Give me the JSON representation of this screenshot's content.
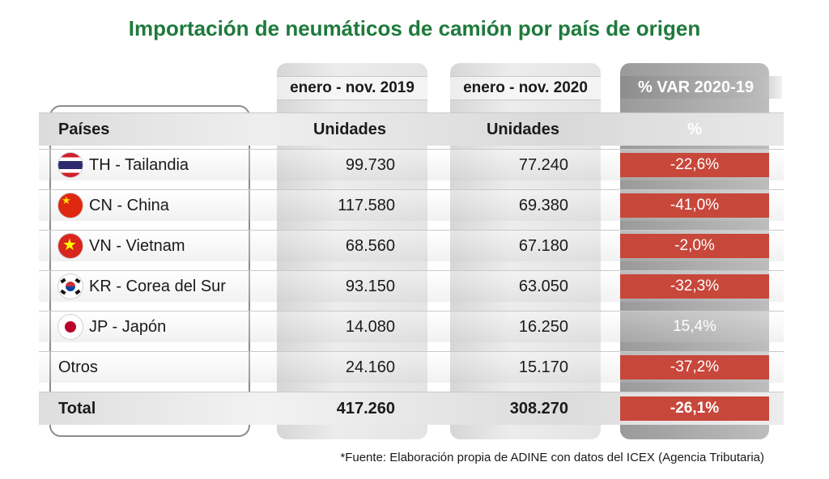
{
  "chart_data": {
    "type": "table",
    "title": "Importación de neumáticos de camión por país de origen",
    "column_periods": [
      "enero - nov. 2019",
      "enero - nov. 2020",
      "% VAR 2020-19"
    ],
    "header": {
      "country": "Países",
      "units_2019": "Unidades",
      "units_2020": "Unidades",
      "pct": "%"
    },
    "rows": [
      {
        "flag": "thailand-flag-icon",
        "country": "TH - Tailandia",
        "units_2019": "99.730",
        "units_2020": "77.240",
        "pct": "-22,6%",
        "negative": true
      },
      {
        "flag": "china-flag-icon",
        "country": "CN - China",
        "units_2019": "117.580",
        "units_2020": "69.380",
        "pct": "-41,0%",
        "negative": true
      },
      {
        "flag": "vietnam-flag-icon",
        "country": "VN - Vietnam",
        "units_2019": "68.560",
        "units_2020": "67.180",
        "pct": "-2,0%",
        "negative": true
      },
      {
        "flag": "south-korea-flag-icon",
        "country": "KR - Corea del Sur",
        "units_2019": "93.150",
        "units_2020": "63.050",
        "pct": "-32,3%",
        "negative": true
      },
      {
        "flag": "japan-flag-icon",
        "country": "JP - Japón",
        "units_2019": "14.080",
        "units_2020": "16.250",
        "pct": "15,4%",
        "negative": false
      },
      {
        "flag": "",
        "country": "Otros",
        "units_2019": "24.160",
        "units_2020": "15.170",
        "pct": "-37,2%",
        "negative": true
      }
    ],
    "total": {
      "country": "Total",
      "units_2019": "417.260",
      "units_2020": "308.270",
      "pct": "-26,1%"
    },
    "source": "*Fuente: Elaboración propia de ADINE con datos del ICEX (Agencia Tributaria)",
    "colors": {
      "title": "#1e7a3c",
      "negative": "#c8473b",
      "var_column": "#a6a6a6"
    }
  }
}
